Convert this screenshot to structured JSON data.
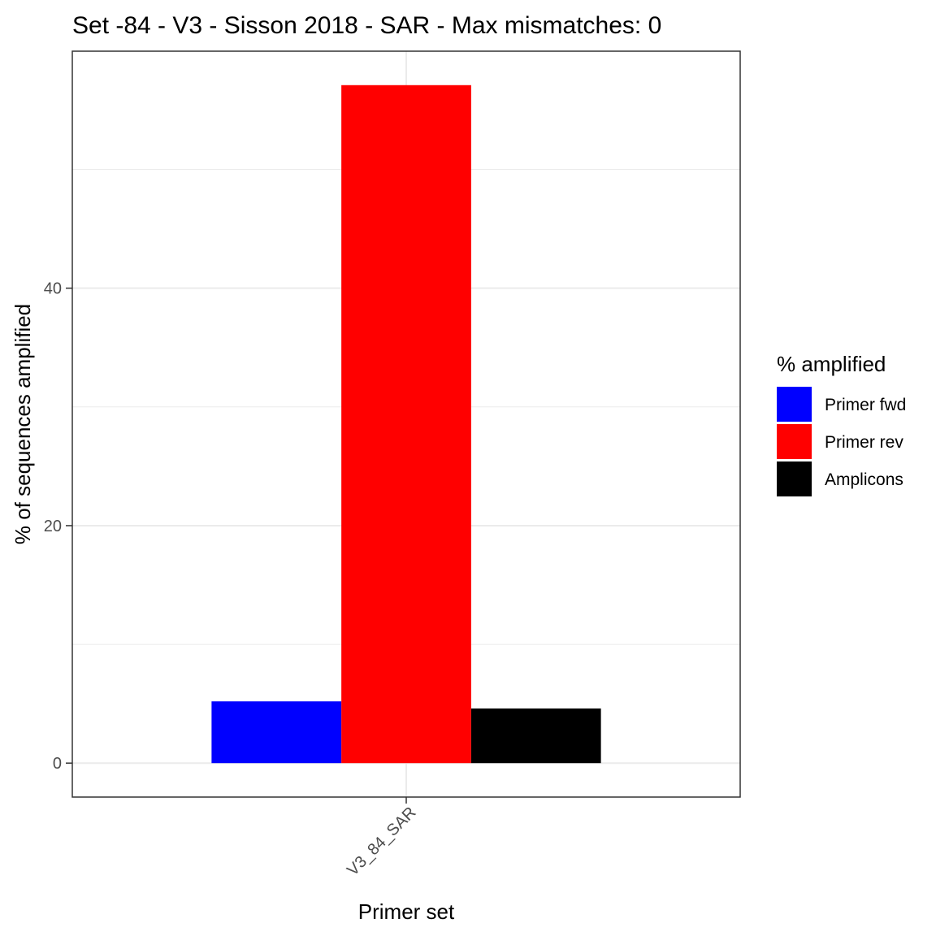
{
  "chart_data": {
    "type": "bar",
    "title": "Set -84 - V3 - Sisson 2018 - SAR - Max mismatches: 0",
    "xlabel": "Primer set",
    "ylabel": "% of sequences amplified",
    "categories": [
      "V3_84_SAR"
    ],
    "series": [
      {
        "name": "Primer fwd",
        "color": "#0000ff",
        "values": [
          5.2
        ]
      },
      {
        "name": "Primer rev",
        "color": "#ff0000",
        "values": [
          57.1
        ]
      },
      {
        "name": "Amplicons",
        "color": "#000000",
        "values": [
          4.6
        ]
      }
    ],
    "ylim": [
      -2.86,
      59.96
    ],
    "y_ticks": [
      0,
      20,
      40
    ],
    "y_tick_labels": [
      "0",
      "20",
      "40"
    ],
    "grid": true,
    "legend": {
      "title": "% amplified",
      "placement": "right"
    }
  }
}
